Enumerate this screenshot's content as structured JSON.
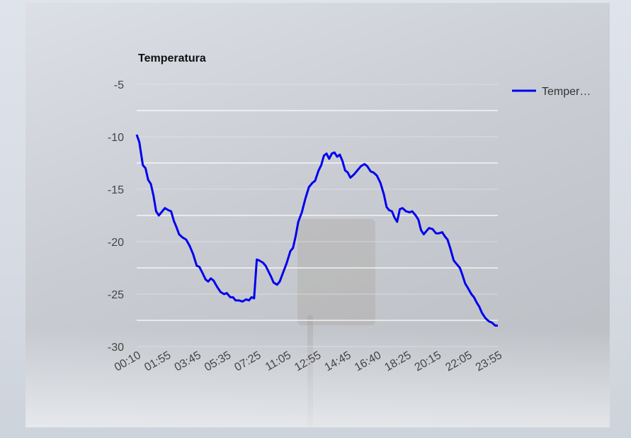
{
  "chart_data": {
    "type": "line",
    "title": "Temperatura",
    "xlabel": "",
    "ylabel": "",
    "ylim": [
      -30,
      -5
    ],
    "yticks": [
      -5,
      -10,
      -15,
      -20,
      -25,
      -30
    ],
    "xticks": [
      "00:10",
      "01:55",
      "03:45",
      "05:35",
      "07:25",
      "11:05",
      "12:55",
      "14:45",
      "16:40",
      "18:25",
      "20:15",
      "22:05",
      "23:55"
    ],
    "grid": true,
    "legend_position": "right",
    "series": [
      {
        "name": "Temper…",
        "color": "#0000ee",
        "values": [
          [
            0.0,
            -9.8
          ],
          [
            0.15,
            -10.5
          ],
          [
            0.35,
            -12.7
          ],
          [
            0.5,
            -13.0
          ],
          [
            0.65,
            -14.1
          ],
          [
            0.8,
            -14.5
          ],
          [
            0.95,
            -15.6
          ],
          [
            1.1,
            -17.1
          ],
          [
            1.25,
            -17.5
          ],
          [
            1.4,
            -17.2
          ],
          [
            1.6,
            -16.8
          ],
          [
            1.8,
            -17.0
          ],
          [
            1.95,
            -17.1
          ],
          [
            2.1,
            -18.0
          ],
          [
            2.25,
            -18.6
          ],
          [
            2.4,
            -19.3
          ],
          [
            2.6,
            -19.6
          ],
          [
            2.8,
            -19.8
          ],
          [
            3.0,
            -20.4
          ],
          [
            3.2,
            -21.2
          ],
          [
            3.4,
            -22.3
          ],
          [
            3.55,
            -22.4
          ],
          [
            3.7,
            -22.9
          ],
          [
            3.9,
            -23.6
          ],
          [
            4.05,
            -23.8
          ],
          [
            4.2,
            -23.5
          ],
          [
            4.35,
            -23.7
          ],
          [
            4.55,
            -24.3
          ],
          [
            4.75,
            -24.8
          ],
          [
            4.95,
            -25.0
          ],
          [
            5.1,
            -24.9
          ],
          [
            5.3,
            -25.3
          ],
          [
            5.45,
            -25.3
          ],
          [
            5.6,
            -25.6
          ],
          [
            5.8,
            -25.6
          ],
          [
            6.0,
            -25.7
          ],
          [
            6.2,
            -25.5
          ],
          [
            6.35,
            -25.6
          ],
          [
            6.5,
            -25.3
          ],
          [
            6.65,
            -25.4
          ],
          [
            6.8,
            -21.7
          ],
          [
            6.95,
            -21.8
          ],
          [
            7.15,
            -22.0
          ],
          [
            7.3,
            -22.3
          ],
          [
            7.45,
            -22.8
          ],
          [
            7.6,
            -23.3
          ],
          [
            7.75,
            -23.9
          ],
          [
            7.95,
            -24.1
          ],
          [
            8.1,
            -23.8
          ],
          [
            8.3,
            -22.9
          ],
          [
            8.5,
            -22.0
          ],
          [
            8.7,
            -20.9
          ],
          [
            8.85,
            -20.6
          ],
          [
            9.0,
            -19.5
          ],
          [
            9.15,
            -18.1
          ],
          [
            9.35,
            -17.2
          ],
          [
            9.55,
            -15.9
          ],
          [
            9.75,
            -14.8
          ],
          [
            9.95,
            -14.4
          ],
          [
            10.1,
            -14.2
          ],
          [
            10.3,
            -13.2
          ],
          [
            10.45,
            -12.7
          ],
          [
            10.6,
            -11.8
          ],
          [
            10.75,
            -11.6
          ],
          [
            10.9,
            -12.1
          ],
          [
            11.05,
            -11.6
          ],
          [
            11.2,
            -11.5
          ],
          [
            11.35,
            -11.9
          ],
          [
            11.5,
            -11.7
          ],
          [
            11.65,
            -12.3
          ],
          [
            11.8,
            -13.2
          ],
          [
            11.95,
            -13.4
          ],
          [
            12.1,
            -13.9
          ],
          [
            12.3,
            -13.6
          ],
          [
            12.5,
            -13.2
          ],
          [
            12.7,
            -12.8
          ],
          [
            12.9,
            -12.6
          ],
          [
            13.05,
            -12.8
          ],
          [
            13.25,
            -13.3
          ],
          [
            13.4,
            -13.4
          ],
          [
            13.6,
            -13.7
          ],
          [
            13.8,
            -14.4
          ],
          [
            14.0,
            -15.5
          ],
          [
            14.15,
            -16.7
          ],
          [
            14.3,
            -17.0
          ],
          [
            14.45,
            -17.1
          ],
          [
            14.6,
            -17.7
          ],
          [
            14.75,
            -18.1
          ],
          [
            14.9,
            -16.9
          ],
          [
            15.05,
            -16.8
          ],
          [
            15.25,
            -17.1
          ],
          [
            15.45,
            -17.2
          ],
          [
            15.6,
            -17.1
          ],
          [
            15.8,
            -17.5
          ],
          [
            15.95,
            -17.9
          ],
          [
            16.1,
            -18.9
          ],
          [
            16.25,
            -19.3
          ],
          [
            16.4,
            -19.0
          ],
          [
            16.55,
            -18.7
          ],
          [
            16.75,
            -18.8
          ],
          [
            16.95,
            -19.2
          ],
          [
            17.1,
            -19.2
          ],
          [
            17.3,
            -19.1
          ],
          [
            17.45,
            -19.5
          ],
          [
            17.6,
            -19.8
          ],
          [
            17.75,
            -20.6
          ],
          [
            17.95,
            -21.8
          ],
          [
            18.1,
            -22.1
          ],
          [
            18.3,
            -22.5
          ],
          [
            18.45,
            -23.2
          ],
          [
            18.6,
            -24.0
          ],
          [
            18.75,
            -24.4
          ],
          [
            18.95,
            -25.0
          ],
          [
            19.1,
            -25.3
          ],
          [
            19.25,
            -25.8
          ],
          [
            19.4,
            -26.2
          ],
          [
            19.55,
            -26.8
          ],
          [
            19.75,
            -27.3
          ],
          [
            19.95,
            -27.6
          ],
          [
            20.1,
            -27.7
          ],
          [
            20.3,
            -28.0
          ],
          [
            20.45,
            -28.0
          ]
        ]
      }
    ]
  }
}
